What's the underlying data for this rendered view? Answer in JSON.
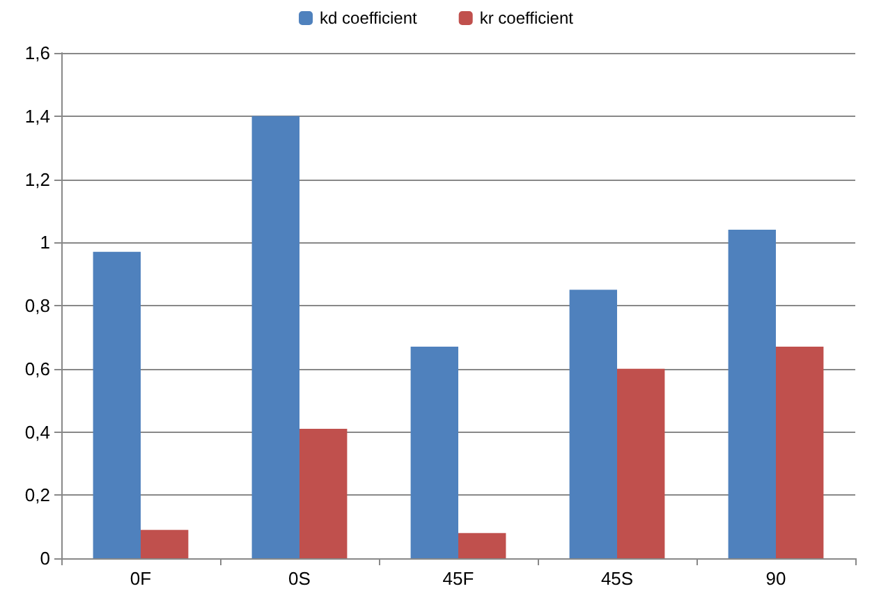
{
  "chart_data": {
    "type": "bar",
    "categories": [
      "0F",
      "0S",
      "45F",
      "45S",
      "90"
    ],
    "series": [
      {
        "name": "kd coefficient",
        "color": "#4f81bd",
        "values": [
          0.97,
          1.4,
          0.67,
          0.85,
          1.04
        ]
      },
      {
        "name": "kr coefficient",
        "color": "#c0504d",
        "values": [
          0.09,
          0.41,
          0.08,
          0.6,
          0.67
        ]
      }
    ],
    "ylim": [
      0,
      1.6
    ],
    "yticks": [
      0,
      {
        "value": 0.2,
        "label": "0,2"
      },
      {
        "value": 0.4,
        "label": "0,4"
      },
      {
        "value": 0.6,
        "label": "0,6"
      },
      {
        "value": 0.8,
        "label": "0,8"
      },
      1,
      {
        "value": 1.2,
        "label": "1,2"
      },
      {
        "value": 1.4,
        "label": "1,4"
      },
      {
        "value": 1.6,
        "label": "1,6"
      }
    ],
    "grid": "y",
    "legend": "top"
  }
}
